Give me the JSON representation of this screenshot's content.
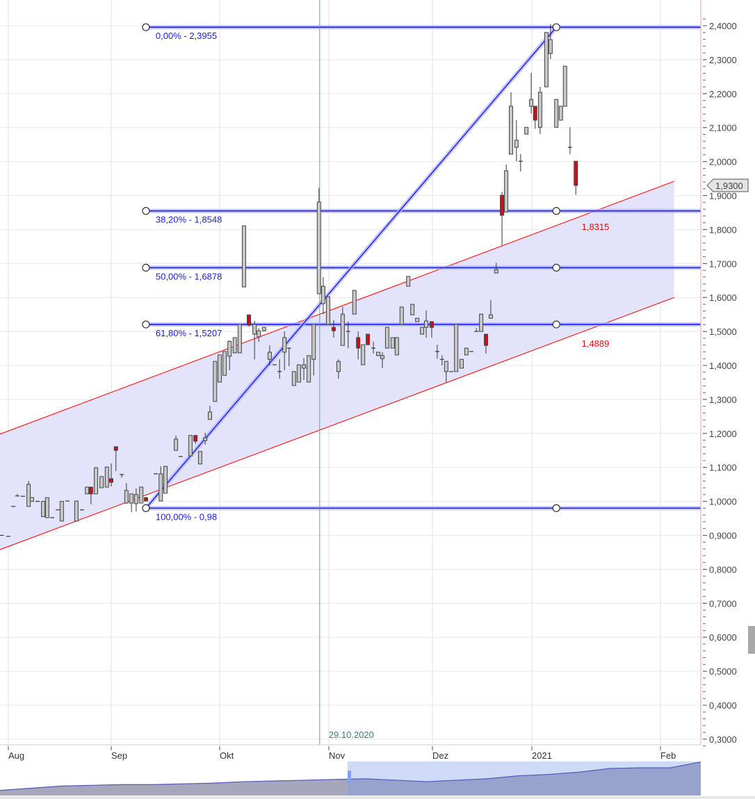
{
  "chart_data": {
    "type": "candlestick",
    "x_unit": "days since 2020-08-01",
    "ylim": [
      0.3,
      2.4
    ],
    "y_ticks": [
      0.3,
      0.4,
      0.5,
      0.6,
      0.7,
      0.8,
      0.9,
      1.0,
      1.1,
      1.2,
      1.3,
      1.4,
      1.5,
      1.6,
      1.7,
      1.8,
      1.9,
      2.0,
      2.1,
      2.2,
      2.3,
      2.4
    ],
    "y_tick_labels": [
      "0,3000",
      "0,4000",
      "0,5000",
      "0,6000",
      "0,7000",
      "0,8000",
      "0,9000",
      "1,0000",
      "1,1000",
      "1,2000",
      "1,3000",
      "1,4000",
      "1,5000",
      "1,6000",
      "1,7000",
      "1,8000",
      "1,9000",
      "2,0000",
      "2,1000",
      "2,2000",
      "2,3000",
      "2,4000"
    ],
    "x_ticks": [
      {
        "d": 0,
        "label": "Aug"
      },
      {
        "d": 31,
        "label": "Sep"
      },
      {
        "d": 61,
        "label": "Okt"
      },
      {
        "d": 92,
        "label": "Nov"
      },
      {
        "d": 122,
        "label": "Dez"
      },
      {
        "d": 153,
        "label": "2021"
      },
      {
        "d": 184,
        "label": "Feb"
      }
    ],
    "last_price": {
      "value": 1.93,
      "label": "1,9300"
    },
    "candles_ohlc": [
      [
        -2,
        0.9,
        0.9,
        0.9,
        0.9
      ],
      [
        0,
        0.897,
        0.897,
        0.897,
        0.897
      ],
      [
        1.5,
        0.985,
        0.985,
        0.985,
        0.985
      ],
      [
        2.7,
        1.016,
        1.022,
        1.016,
        1.016
      ],
      [
        4.4,
        1.015,
        1.015,
        1.015,
        1.015
      ],
      [
        6.1,
        0.985,
        1.06,
        0.985,
        1.05
      ],
      [
        7.1,
        1.0,
        1.011,
        1.0,
        1.011
      ],
      [
        8.8,
        1.0,
        1.0,
        1.0,
        1.0
      ],
      [
        10.5,
        0.955,
        1.0,
        0.955,
        1.0
      ],
      [
        11.7,
        0.952,
        1.011,
        0.952,
        1.011
      ],
      [
        13.2,
        0.952,
        0.952,
        0.952,
        0.952
      ],
      [
        14.9,
        0.975,
        0.975,
        0.975,
        0.975
      ],
      [
        16.1,
        0.942,
        1.0,
        0.942,
        1.0
      ],
      [
        17.8,
        1.001,
        1.001,
        1.001,
        1.001
      ],
      [
        20.5,
        0.942,
        1.001,
        0.942,
        1.001
      ],
      [
        22.2,
        0.975,
        0.975,
        0.975,
        0.975
      ],
      [
        23.7,
        1.022,
        1.042,
        1.022,
        1.042
      ],
      [
        24.9,
        1.042,
        1.042,
        0.991,
        1.022
      ],
      [
        26.4,
        1.022,
        1.101,
        1.022,
        1.099
      ],
      [
        28.1,
        1.04,
        1.073,
        1.04,
        1.073
      ],
      [
        29.7,
        1.042,
        1.101,
        1.042,
        1.101
      ],
      [
        31,
        1.067,
        1.112,
        1.044,
        1.056
      ],
      [
        32.3,
        1.161,
        1.161,
        1.089,
        1.15
      ],
      [
        33.9,
        1.079,
        1.079,
        1.07,
        1.079
      ],
      [
        35.2,
        0.995,
        1.054,
        0.993,
        1.032
      ],
      [
        36.6,
        0.995,
        1.022,
        0.968,
        1.022
      ],
      [
        37.9,
        0.993,
        1.038,
        0.97,
        1.02
      ],
      [
        39.3,
        0.995,
        1.042,
        0.995,
        1.042
      ],
      [
        40.6,
        1.011,
        1.013,
        1.0,
        1.001
      ],
      [
        43.3,
        1.081,
        1.081,
        1.081,
        1.081
      ],
      [
        44.7,
        1.001,
        1.103,
        1.001,
        1.081
      ],
      [
        46,
        1.024,
        1.103,
        1.024,
        1.103
      ],
      [
        48.9,
        1.15,
        1.194,
        1.15,
        1.183
      ],
      [
        50.2,
        1.132,
        1.132,
        1.132,
        1.132
      ],
      [
        52.9,
        1.134,
        1.194,
        1.134,
        1.194
      ],
      [
        54.3,
        1.194,
        1.194,
        1.169,
        1.177
      ],
      [
        55.6,
        1.11,
        1.147,
        1.11,
        1.147
      ],
      [
        57,
        1.179,
        1.202,
        1.167,
        1.187
      ],
      [
        58.3,
        1.241,
        1.281,
        1.241,
        1.263
      ],
      [
        59.7,
        1.294,
        1.412,
        1.294,
        1.412
      ],
      [
        61,
        1.351,
        1.431,
        1.351,
        1.431
      ],
      [
        62.4,
        1.371,
        1.441,
        1.371,
        1.441
      ],
      [
        63.8,
        1.427,
        1.474,
        1.386,
        1.471
      ],
      [
        65.3,
        1.437,
        1.482,
        1.437,
        1.482
      ],
      [
        66.7,
        1.437,
        1.521,
        1.437,
        1.521
      ],
      [
        67.9,
        1.631,
        1.811,
        1.631,
        1.811
      ],
      [
        69.3,
        1.549,
        1.549,
        1.515,
        1.519
      ],
      [
        70.9,
        1.492,
        1.531,
        1.418,
        1.521
      ],
      [
        72.1,
        1.484,
        1.51,
        1.47,
        1.502
      ],
      [
        73.6,
        1.502,
        1.512,
        1.5,
        1.512
      ],
      [
        75.2,
        1.418,
        1.459,
        1.4,
        1.439
      ],
      [
        76.6,
        1.402,
        1.402,
        1.402,
        1.402
      ],
      [
        78,
        1.382,
        1.418,
        1.361,
        1.382
      ],
      [
        79.4,
        1.439,
        1.5,
        1.386,
        1.482
      ],
      [
        80.7,
        1.451,
        1.451,
        1.398,
        1.451
      ],
      [
        82.1,
        1.341,
        1.382,
        1.341,
        1.382
      ],
      [
        83.5,
        1.351,
        1.402,
        1.351,
        1.402
      ],
      [
        84.9,
        1.392,
        1.422,
        1.357,
        1.402
      ],
      [
        86.3,
        1.351,
        1.429,
        1.351,
        1.429
      ],
      [
        87.7,
        1.418,
        1.521,
        1.371,
        1.521
      ],
      [
        89.2,
        1.611,
        1.922,
        1.611,
        1.881
      ],
      [
        90.4,
        1.582,
        1.66,
        1.551,
        1.633
      ],
      [
        91.8,
        1.521,
        1.602,
        1.521,
        1.602
      ],
      [
        93.4,
        1.512,
        1.533,
        1.482,
        1.502
      ],
      [
        94.8,
        1.382,
        1.418,
        1.361,
        1.412
      ],
      [
        96,
        1.459,
        1.572,
        1.459,
        1.551
      ],
      [
        97.6,
        1.5,
        1.529,
        1.451,
        1.5
      ],
      [
        99.4,
        1.551,
        1.621,
        1.551,
        1.621
      ],
      [
        100.5,
        1.482,
        1.5,
        1.418,
        1.451
      ],
      [
        101.9,
        1.402,
        1.461,
        1.402,
        1.461
      ],
      [
        103.3,
        1.492,
        1.492,
        1.461,
        1.461
      ],
      [
        104.9,
        1.451,
        1.47,
        1.435,
        1.451
      ],
      [
        106.3,
        1.429,
        1.439,
        1.429,
        1.439
      ],
      [
        107.5,
        1.42,
        1.439,
        1.392,
        1.429
      ],
      [
        108.9,
        1.451,
        1.512,
        1.451,
        1.512
      ],
      [
        110.5,
        1.451,
        1.482,
        1.451,
        1.482
      ],
      [
        111.7,
        1.431,
        1.482,
        1.431,
        1.482
      ],
      [
        113.1,
        1.521,
        1.572,
        1.521,
        1.572
      ],
      [
        115,
        1.633,
        1.662,
        1.633,
        1.662
      ],
      [
        116.2,
        1.549,
        1.58,
        1.549,
        1.58
      ],
      [
        117.6,
        1.529,
        1.539,
        1.529,
        1.539
      ],
      [
        119,
        1.492,
        1.512,
        1.492,
        1.512
      ],
      [
        120.2,
        1.512,
        1.562,
        1.482,
        1.531
      ],
      [
        121.8,
        1.529,
        1.529,
        1.482,
        1.512
      ],
      [
        123.5,
        1.441,
        1.461,
        1.42,
        1.441
      ],
      [
        125,
        1.418,
        1.43,
        1.4,
        1.418
      ],
      [
        126.3,
        1.382,
        1.412,
        1.351,
        1.412
      ],
      [
        127.9,
        1.382,
        1.382,
        1.382,
        1.382
      ],
      [
        129.4,
        1.382,
        1.521,
        1.382,
        1.521
      ],
      [
        131.1,
        1.392,
        1.418,
        1.392,
        1.418
      ],
      [
        132.6,
        1.431,
        1.451,
        1.431,
        1.451
      ],
      [
        134.1,
        1.441,
        1.441,
        1.441,
        1.441
      ],
      [
        135.7,
        1.5,
        1.51,
        1.5,
        1.5
      ],
      [
        137.2,
        1.5,
        1.551,
        1.5,
        1.551
      ],
      [
        138.7,
        1.492,
        1.492,
        1.435,
        1.459
      ],
      [
        140.2,
        1.539,
        1.592,
        1.539,
        1.549
      ],
      [
        141.9,
        1.672,
        1.702,
        1.672,
        1.682
      ],
      [
        143.7,
        1.901,
        1.911,
        1.754,
        1.842
      ],
      [
        145,
        1.852,
        1.991,
        1.852,
        1.973
      ],
      [
        146.5,
        2.022,
        2.204,
        2.022,
        2.163
      ],
      [
        148.2,
        2.042,
        2.122,
        2.001,
        2.063
      ],
      [
        149.5,
        2.001,
        2.022,
        1.971,
        2.001
      ],
      [
        151.3,
        2.081,
        2.101,
        2.081,
        2.101
      ],
      [
        152.8,
        2.163,
        2.261,
        2.142,
        2.183
      ],
      [
        153.8,
        2.163,
        2.163,
        2.097,
        2.122
      ],
      [
        155,
        2.101,
        2.22,
        2.081,
        2.204
      ],
      [
        156.5,
        2.22,
        2.38,
        2.22,
        2.38
      ],
      [
        157.5,
        2.318,
        2.404,
        2.302,
        2.359
      ],
      [
        158.9,
        2.101,
        2.183,
        2.101,
        2.183
      ],
      [
        160,
        2.122,
        2.163,
        2.122,
        2.163
      ],
      [
        161,
        2.163,
        2.281,
        2.163,
        2.281
      ],
      [
        162.2,
        2.042,
        2.101,
        2.022,
        2.042
      ],
      [
        163.6,
        2.001,
        2.001,
        1.902,
        1.93
      ]
    ],
    "fibonacci": {
      "start": {
        "d": 40.6,
        "v": 0.98
      },
      "end": {
        "d": 158.9,
        "v": 2.3955
      },
      "levels": [
        {
          "v": 2.3955,
          "label": "0,00% - 2,3955"
        },
        {
          "v": 1.8548,
          "label": "38,20% - 1,8548"
        },
        {
          "v": 1.6878,
          "label": "50,00% - 1,6878"
        },
        {
          "v": 1.5207,
          "label": "61,80% - 1,5207"
        },
        {
          "v": 0.98,
          "label": "100,00% - 0,98"
        }
      ]
    },
    "channel": {
      "upper": [
        {
          "d": -2.5,
          "v": 1.198
        },
        {
          "d": 187.3,
          "v": 1.942
        }
      ],
      "lower": [
        {
          "d": -2.5,
          "v": 0.858
        },
        {
          "d": 187.3,
          "v": 1.6
        }
      ],
      "upper_label": "1,8315",
      "lower_label": "1,4889",
      "label_d": 165
    },
    "marker": {
      "d": 89.4,
      "label": "29.10.2020"
    },
    "navigator": {
      "values": [
        7,
        10,
        13,
        14,
        15,
        15,
        16,
        17,
        19,
        20,
        21,
        22,
        23,
        21,
        19,
        21,
        23,
        27,
        29,
        32,
        37,
        38,
        38,
        46
      ],
      "window_start_fraction": 0.496
    },
    "colors": {
      "up": "#c8c8c8",
      "down": "#c0151b",
      "fib": "#1a1aff",
      "channel": "#ff2020",
      "channel_fill": "#e3e3fb",
      "marker": "#6a9a9a"
    }
  }
}
